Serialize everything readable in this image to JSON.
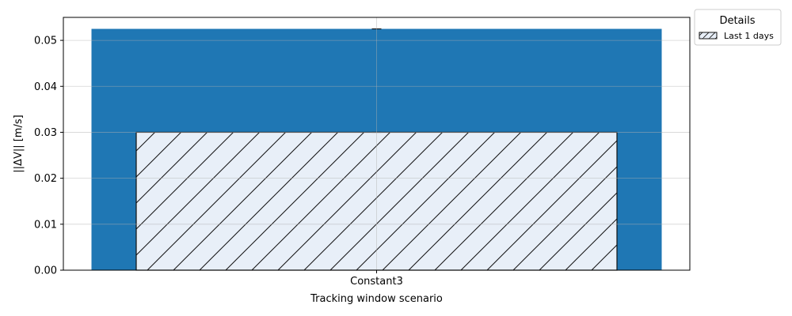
{
  "chart_data": {
    "type": "bar",
    "categories": [
      "Constant3"
    ],
    "series": [
      {
        "values": [
          0.0525
        ],
        "color": "#1f77b4",
        "style": "solid",
        "error": [
          0.0
        ]
      },
      {
        "name": "Last 1 days",
        "values": [
          0.03
        ],
        "color": "#e8eff8",
        "style": "hatched",
        "error": [
          0.0
        ]
      }
    ],
    "xlabel": "Tracking window scenario",
    "ylabel": "||ΔV|| [m/s]",
    "ylim": [
      0,
      0.055
    ],
    "yticks": [
      "0.00",
      "0.01",
      "0.02",
      "0.03",
      "0.04",
      "0.05"
    ],
    "grid": true,
    "legend": {
      "title": "Details",
      "placement": "outside-top-right",
      "entries": [
        "Last 1 days"
      ]
    }
  }
}
